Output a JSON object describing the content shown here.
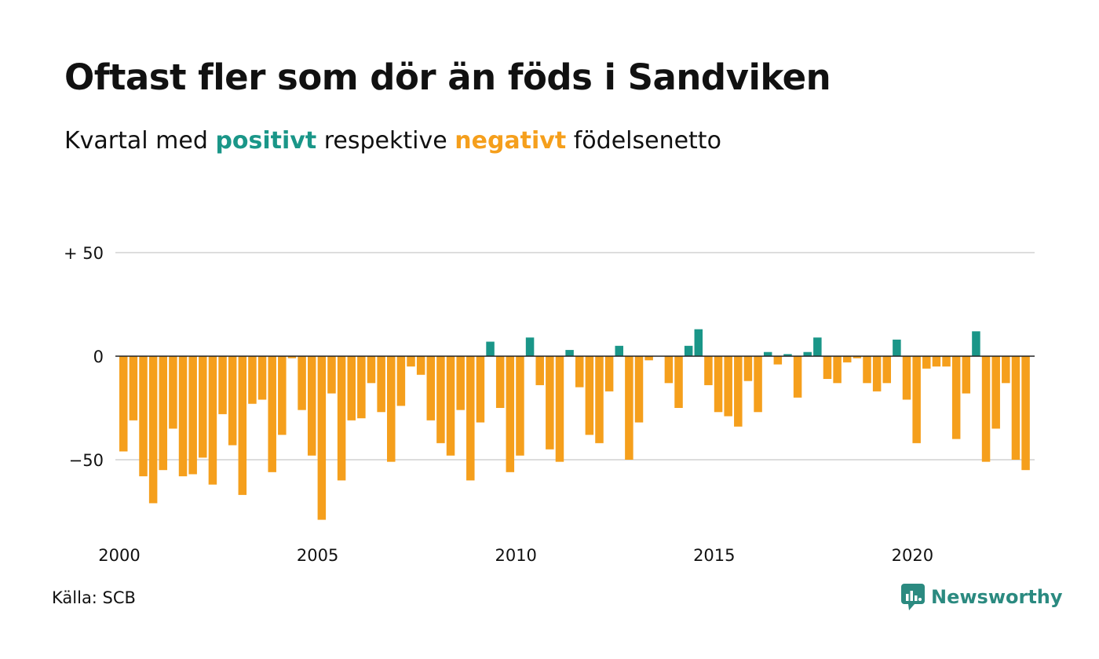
{
  "title": "Oftast fler som dör än föds i Sandviken",
  "subtitle": {
    "prefix": "Kvartal med",
    "positive_word": "positivt",
    "middle": "respektive",
    "negative_word": "negativt",
    "suffix": "födelsenetto"
  },
  "source": "Källa: SCB",
  "brand": "Newsworthy",
  "colors": {
    "positive": "#1a9688",
    "negative": "#f59f1c",
    "grid": "#dddddd",
    "text": "#111111",
    "brand": "#2b8a80"
  },
  "chart_data": {
    "type": "bar",
    "start_year": 2000,
    "ylim": [
      -80,
      50
    ],
    "y_ticks": [
      {
        "value": 50,
        "label": "+ 50"
      },
      {
        "value": 0,
        "label": "0"
      },
      {
        "value": -50,
        "label": "−50"
      }
    ],
    "x_ticks": [
      "2000",
      "2005",
      "2010",
      "2015",
      "2020"
    ],
    "grid": true,
    "values": [
      -46,
      -31,
      -58,
      -71,
      -55,
      -35,
      -58,
      -57,
      -49,
      -62,
      -28,
      -43,
      -67,
      -23,
      -21,
      -56,
      -38,
      -1,
      -26,
      -48,
      -79,
      -18,
      -60,
      -31,
      -30,
      -13,
      -27,
      -51,
      -24,
      -5,
      -9,
      -31,
      -42,
      -48,
      -26,
      -60,
      -32,
      7,
      -25,
      -56,
      -48,
      9,
      -14,
      -45,
      -51,
      3,
      -15,
      -38,
      -42,
      -17,
      5,
      -50,
      -32,
      -2,
      0,
      -13,
      -25,
      5,
      13,
      -14,
      -27,
      -29,
      -34,
      -12,
      -27,
      2,
      -4,
      1,
      -20,
      2,
      9,
      -11,
      -13,
      -3,
      -1,
      -13,
      -17,
      -13,
      8,
      -21,
      -42,
      -6,
      -5,
      -5,
      -40,
      -18,
      12,
      -51,
      -35,
      -13,
      -50,
      -55
    ]
  }
}
